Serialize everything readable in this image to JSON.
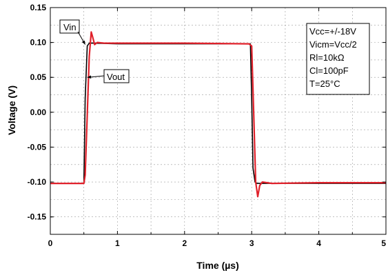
{
  "chart_data": {
    "type": "line",
    "title": "",
    "xlabel": "Time (µs)",
    "ylabel": "Voltage (V)",
    "xlim": [
      0,
      5
    ],
    "ylim": [
      -0.175,
      0.15
    ],
    "x_ticks": [
      0,
      1,
      2,
      3,
      4,
      5
    ],
    "x_tick_labels": [
      "0",
      "1",
      "2",
      "3",
      "4",
      "5"
    ],
    "y_ticks": [
      -0.15,
      -0.1,
      -0.05,
      0.0,
      0.05,
      0.1,
      0.15
    ],
    "y_tick_labels": [
      "-0.15",
      "-0.10",
      "-0.05",
      "0.00",
      "0.05",
      "0.10",
      "0.15"
    ],
    "grid": true,
    "series": [
      {
        "name": "Vin",
        "color": "#000000",
        "x": [
          0,
          0.5,
          0.52,
          0.55,
          0.58,
          0.62,
          1.0,
          2.0,
          2.96,
          2.98,
          3.0,
          3.02,
          3.05,
          3.08,
          3.12,
          4.0,
          5.0
        ],
        "y": [
          -0.102,
          -0.102,
          0.02,
          0.095,
          0.099,
          0.099,
          0.098,
          0.098,
          0.098,
          0.098,
          0.02,
          -0.08,
          -0.1,
          -0.102,
          -0.102,
          -0.102,
          -0.102
        ]
      },
      {
        "name": "Vout",
        "color": "#e0202a",
        "x": [
          0,
          0.5,
          0.52,
          0.58,
          0.61,
          0.63,
          0.66,
          0.7,
          0.8,
          1.0,
          2.0,
          2.96,
          3.0,
          3.03,
          3.06,
          3.09,
          3.12,
          3.16,
          3.3,
          4.0,
          5.0
        ],
        "y": [
          -0.102,
          -0.102,
          -0.09,
          0.08,
          0.115,
          0.108,
          0.097,
          0.1,
          0.099,
          0.099,
          0.099,
          0.098,
          0.095,
          0.0,
          -0.1,
          -0.121,
          -0.105,
          -0.1,
          -0.102,
          -0.101,
          -0.101
        ]
      }
    ],
    "annotations": [
      {
        "text": "Vin",
        "arrow_to": [
          0.52,
          0.097
        ]
      },
      {
        "text": "Vout",
        "arrow_to": [
          0.55,
          0.05
        ]
      }
    ],
    "legend_box": {
      "placement": "top-right",
      "lines": [
        "Vcc=+/-18V",
        "Vicm=Vcc/2",
        "Rl=10kΩ",
        "Cl=100pF",
        "T=25°C"
      ]
    }
  }
}
